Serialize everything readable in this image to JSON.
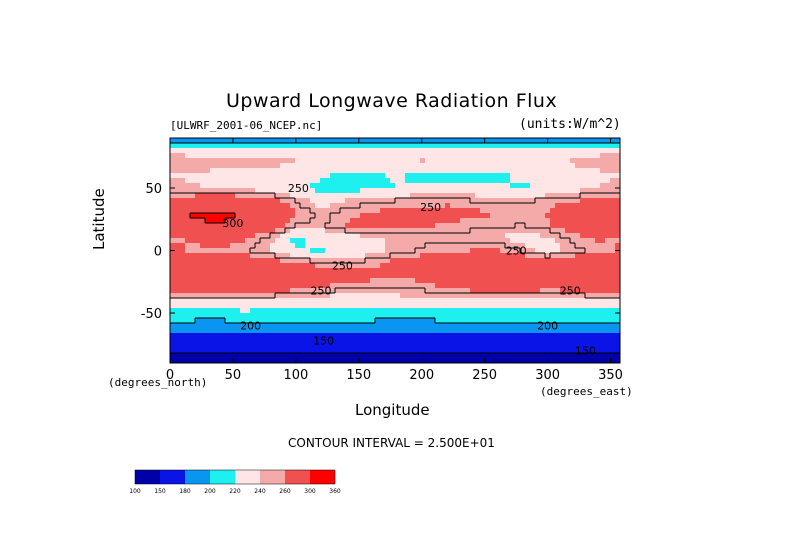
{
  "chart_data": {
    "type": "heatmap",
    "title": "Upward Longwave Radiation Flux",
    "source_label": "[ULWRF_2001-06_NCEP.nc]",
    "units_label": "(units:W/m^2)",
    "xlabel": "Longitude",
    "ylabel": "Latitude",
    "x_unit_label": "(degrees_east)",
    "y_unit_label": "(degrees_north)",
    "xlim": [
      0,
      357.5
    ],
    "ylim": [
      -90,
      90
    ],
    "x_ticks": [
      0,
      50,
      100,
      150,
      200,
      250,
      300,
      350
    ],
    "y_ticks": [
      50,
      0,
      -50
    ],
    "contour_interval_text": "CONTOUR INTERVAL = 2.500E+01",
    "contour_labels": [
      {
        "text": "250",
        "lon": 102,
        "lat": 50
      },
      {
        "text": "250",
        "lon": 207,
        "lat": 35
      },
      {
        "text": "300",
        "lon": 50,
        "lat": 22
      },
      {
        "text": "250",
        "lon": 137,
        "lat": -12
      },
      {
        "text": "250",
        "lon": 275,
        "lat": 0
      },
      {
        "text": "250",
        "lon": 120,
        "lat": -32
      },
      {
        "text": "250",
        "lon": 318,
        "lat": -32
      },
      {
        "text": "200",
        "lon": 64,
        "lat": -60
      },
      {
        "text": "200",
        "lon": 300,
        "lat": -60
      },
      {
        "text": "150",
        "lon": 122,
        "lat": -72
      },
      {
        "text": "150",
        "lon": 330,
        "lat": -80
      }
    ],
    "colorbar": {
      "bounds": [
        100,
        150,
        180,
        200,
        220,
        240,
        260,
        300,
        360
      ],
      "colors": [
        "#0000a8",
        "#0a14e6",
        "#0a96f0",
        "#1ef0f0",
        "#ffe6e6",
        "#f5aaaa",
        "#f05050",
        "#ff0000"
      ]
    },
    "latitudes": [
      90,
      80,
      70,
      60,
      50,
      40,
      30,
      20,
      10,
      0,
      -10,
      -20,
      -30,
      -40,
      -50,
      -60,
      -70,
      -80,
      -90
    ],
    "longitudes": [
      0,
      20,
      40,
      60,
      80,
      100,
      120,
      140,
      160,
      180,
      200,
      220,
      240,
      260,
      280,
      300,
      320,
      340,
      357.5
    ],
    "values": [
      [
        175,
        175,
        172,
        170,
        172,
        176,
        178,
        175,
        172,
        170,
        172,
        176,
        178,
        175,
        172,
        174,
        176,
        178,
        175
      ],
      [
        235,
        232,
        228,
        230,
        236,
        240,
        238,
        235,
        232,
        230,
        234,
        238,
        240,
        236,
        232,
        230,
        234,
        236,
        235
      ],
      [
        252,
        250,
        248,
        246,
        244,
        240,
        236,
        232,
        234,
        238,
        242,
        236,
        232,
        230,
        234,
        238,
        242,
        246,
        252
      ],
      [
        240,
        236,
        232,
        236,
        232,
        228,
        222,
        215,
        218,
        222,
        214,
        210,
        214,
        218,
        222,
        226,
        230,
        236,
        240
      ],
      [
        246,
        242,
        238,
        234,
        228,
        222,
        215,
        212,
        216,
        220,
        225,
        230,
        226,
        222,
        218,
        224,
        232,
        240,
        246
      ],
      [
        262,
        272,
        278,
        275,
        268,
        248,
        232,
        240,
        246,
        250,
        252,
        255,
        250,
        246,
        248,
        252,
        258,
        266,
        262
      ],
      [
        290,
        305,
        302,
        300,
        288,
        262,
        245,
        256,
        262,
        265,
        262,
        268,
        264,
        260,
        255,
        262,
        280,
        298,
        290
      ],
      [
        282,
        296,
        300,
        294,
        276,
        250,
        246,
        262,
        268,
        266,
        262,
        258,
        254,
        256,
        248,
        258,
        272,
        292,
        282
      ],
      [
        258,
        262,
        270,
        262,
        244,
        214,
        228,
        232,
        236,
        242,
        245,
        248,
        244,
        240,
        230,
        238,
        252,
        262,
        258
      ],
      [
        262,
        258,
        256,
        252,
        240,
        222,
        218,
        226,
        232,
        246,
        252,
        258,
        260,
        262,
        248,
        232,
        246,
        256,
        262
      ],
      [
        276,
        282,
        286,
        278,
        270,
        262,
        254,
        248,
        256,
        266,
        272,
        278,
        282,
        286,
        280,
        274,
        278,
        282,
        276
      ],
      [
        288,
        292,
        294,
        290,
        286,
        280,
        276,
        270,
        266,
        262,
        268,
        276,
        282,
        290,
        294,
        290,
        292,
        294,
        288
      ],
      [
        272,
        276,
        278,
        276,
        272,
        266,
        258,
        252,
        250,
        248,
        252,
        260,
        266,
        270,
        272,
        266,
        268,
        274,
        272
      ],
      [
        238,
        236,
        234,
        238,
        236,
        232,
        230,
        228,
        232,
        234,
        236,
        238,
        236,
        234,
        232,
        230,
        234,
        238,
        238
      ],
      [
        214,
        212,
        214,
        216,
        214,
        212,
        212,
        214,
        216,
        214,
        212,
        214,
        216,
        214,
        212,
        214,
        216,
        214,
        214
      ],
      [
        194,
        192,
        190,
        192,
        194,
        196,
        194,
        192,
        190,
        188,
        190,
        192,
        194,
        196,
        194,
        192,
        190,
        192,
        194
      ],
      [
        172,
        170,
        168,
        166,
        168,
        170,
        168,
        166,
        168,
        170,
        172,
        170,
        168,
        166,
        168,
        170,
        172,
        170,
        172
      ],
      [
        155,
        154,
        152,
        150,
        152,
        155,
        154,
        152,
        150,
        152,
        155,
        154,
        152,
        150,
        152,
        155,
        154,
        152,
        155
      ],
      [
        140,
        142,
        140,
        138,
        140,
        142,
        140,
        138,
        140,
        142,
        140,
        138,
        140,
        142,
        140,
        138,
        140,
        142,
        140
      ]
    ]
  }
}
